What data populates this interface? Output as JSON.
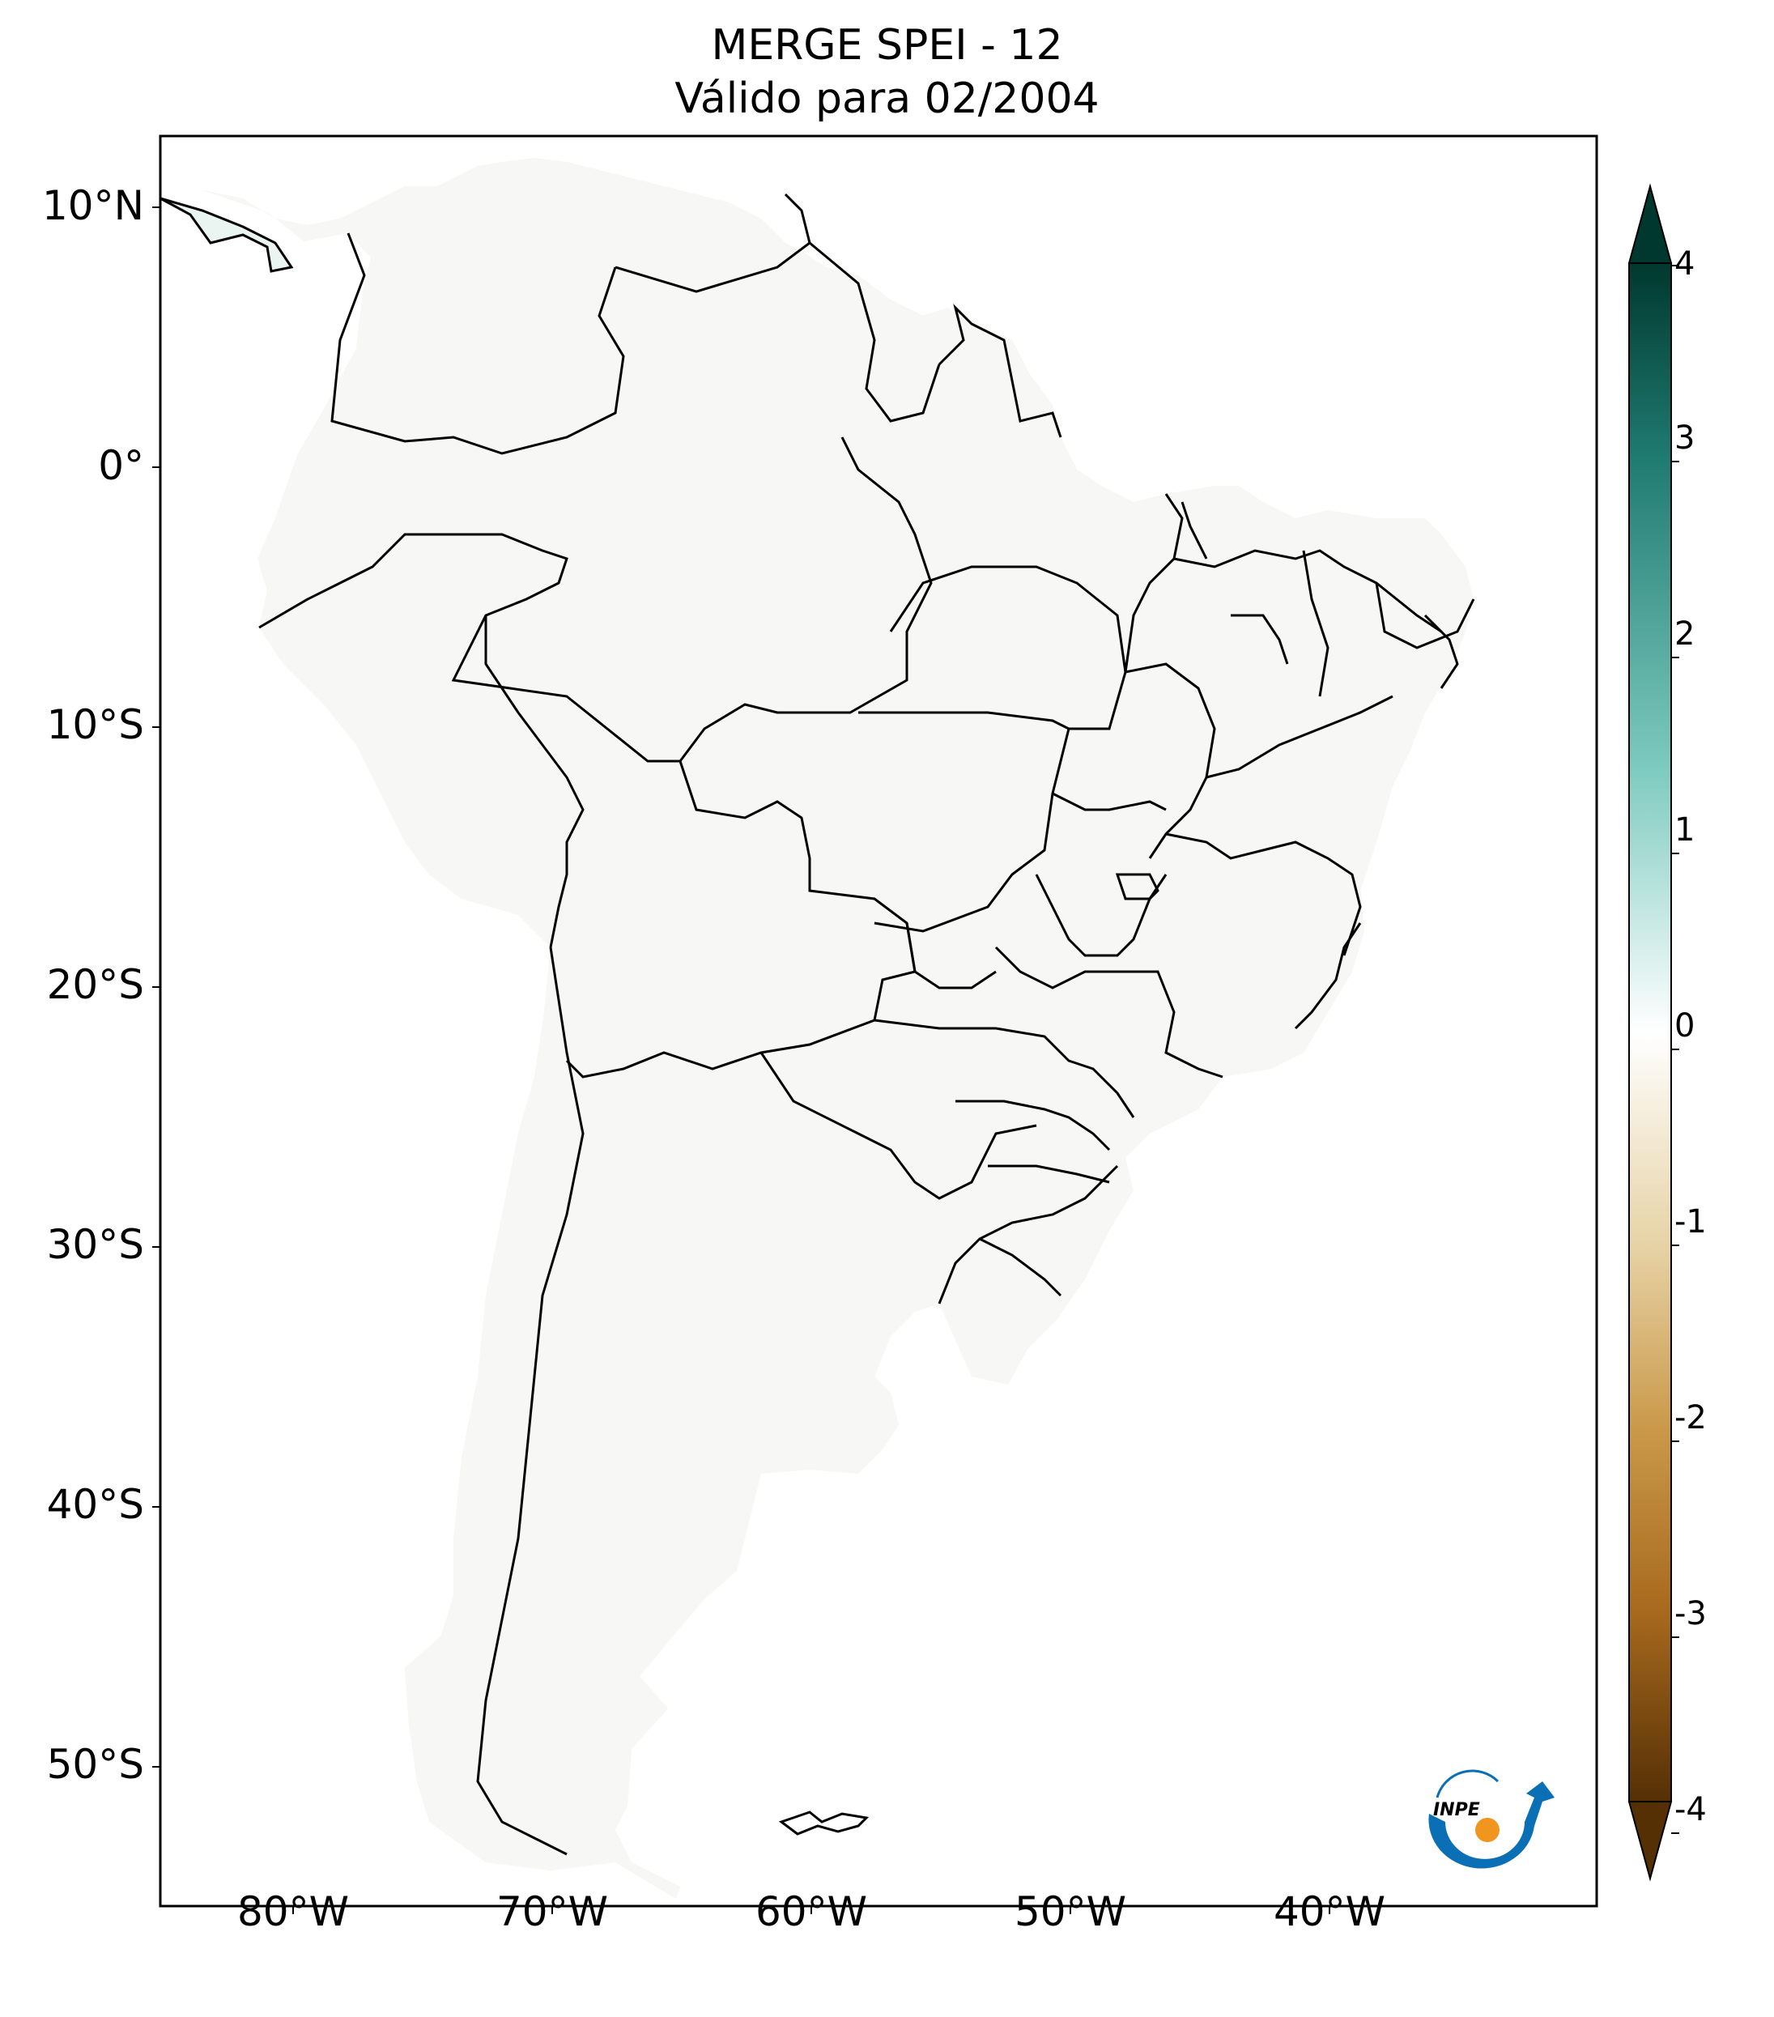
{
  "title": {
    "line1": "MERGE   SPEI - 12",
    "line2": "Válido para 02/2004"
  },
  "axes": {
    "lat_ticks": [
      "10°N",
      "0°",
      "10°S",
      "20°S",
      "30°S",
      "40°S",
      "50°S"
    ],
    "lon_ticks": [
      "80°W",
      "70°W",
      "60°W",
      "50°W",
      "40°W"
    ]
  },
  "colorbar": {
    "ticks": [
      "4",
      "3",
      "2",
      "1",
      "0",
      "-1",
      "-2",
      "-3",
      "-4"
    ],
    "colors": {
      "max": "#00382f",
      "high": "#1f7a70",
      "mid_high": "#7ecbc0",
      "neutral": "#ffffff",
      "mid_low": "#dfc386",
      "low": "#a86a1e",
      "min": "#553005"
    },
    "extend": "both"
  },
  "logo": {
    "text": "INPE",
    "colors": {
      "arc": "#0a6fb4",
      "dot": "#f0961e"
    }
  }
}
